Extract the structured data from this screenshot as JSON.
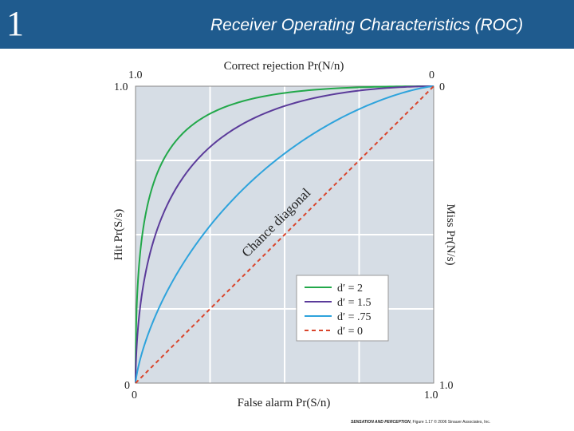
{
  "slide": {
    "number": "1",
    "title": "Receiver Operating Characteristics (ROC)"
  },
  "footer": {
    "book": "SENSATION AND PERCEPTION",
    "figure": ", Figure 1.17",
    "copyright": "© 2006 Sinauer Associates, Inc."
  },
  "colors": {
    "header_bg": "#1f5b8e",
    "plot_bg": "#d6dde5",
    "d2": "#22a84a",
    "d15": "#5b3b9a",
    "d075": "#2ea3dc",
    "d0": "#d9452c"
  },
  "chart_data": {
    "type": "line",
    "xlabel": "False alarm Pr(S/n)",
    "ylabel": "Hit Pr(S/s)",
    "top_label": "Correct rejection Pr(N/n)",
    "right_label": "Miss Pr(N/s)",
    "xlim": [
      0,
      1
    ],
    "ylim": [
      0,
      1
    ],
    "grid": true,
    "legend_position": "lower-right",
    "diagonal_label": "Chance diagonal",
    "ticks": {
      "bottom_left": "0",
      "bottom_right": "1.0",
      "left_top": "1.0",
      "left_bottom": "0",
      "top_left": "1.0",
      "top_right": "0",
      "right_top": "0",
      "right_bottom": "1.0"
    },
    "series": [
      {
        "name": "d′ = 2",
        "d_prime": 2,
        "style": "solid",
        "color": "#22a84a"
      },
      {
        "name": "d′ = 1.5",
        "d_prime": 1.5,
        "style": "solid",
        "color": "#5b3b9a"
      },
      {
        "name": "d′ = .75",
        "d_prime": 0.75,
        "style": "solid",
        "color": "#2ea3dc"
      },
      {
        "name": "d′ = 0",
        "d_prime": 0,
        "style": "dashed",
        "color": "#d9452c"
      }
    ]
  }
}
